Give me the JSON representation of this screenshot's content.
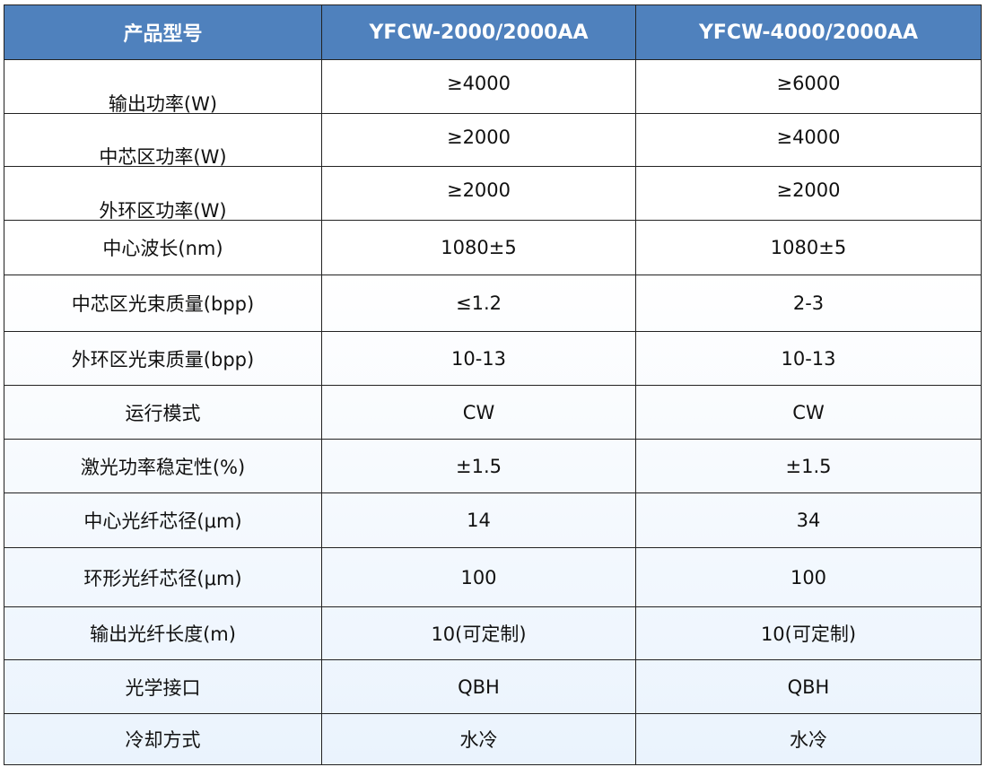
{
  "header": {
    "label": "产品型号",
    "models": [
      "YFCW-2000/2000AA",
      "YFCW-4000/2000AA"
    ]
  },
  "colors": {
    "header_bg": "#4f81bd",
    "header_text": "#ffffff",
    "row_bg_bottom": "#eaf3fd"
  },
  "rows": [
    {
      "label": "输出功率(W)",
      "v1": "≥4000",
      "v2": "≥6000"
    },
    {
      "label": "中芯区功率(W)",
      "v1": "≥2000",
      "v2": "≥4000"
    },
    {
      "label": "外环区功率(W)",
      "v1": "≥2000",
      "v2": "≥2000"
    },
    {
      "label": "中心波长(nm)",
      "v1": "1080±5",
      "v2": "1080±5"
    },
    {
      "label": "中芯区光束质量(bpp)",
      "v1": "≤1.2",
      "v2": "2-3"
    },
    {
      "label": "外环区光束质量(bpp)",
      "v1": "10-13",
      "v2": "10-13"
    },
    {
      "label": "运行模式",
      "v1": "CW",
      "v2": "CW"
    },
    {
      "label": "激光功率稳定性(%)",
      "v1": "±1.5",
      "v2": "±1.5"
    },
    {
      "label": "中心光纤芯径(μm)",
      "v1": "14",
      "v2": "34"
    },
    {
      "label": "环形光纤芯径(μm)",
      "v1": "100",
      "v2": "100"
    },
    {
      "label": "输出光纤长度(m)",
      "v1": "10(可定制)",
      "v2": "10(可定制)"
    },
    {
      "label": "光学接口",
      "v1": "QBH",
      "v2": "QBH"
    },
    {
      "label": "冷却方式",
      "v1": "水冷",
      "v2": "水冷"
    }
  ]
}
